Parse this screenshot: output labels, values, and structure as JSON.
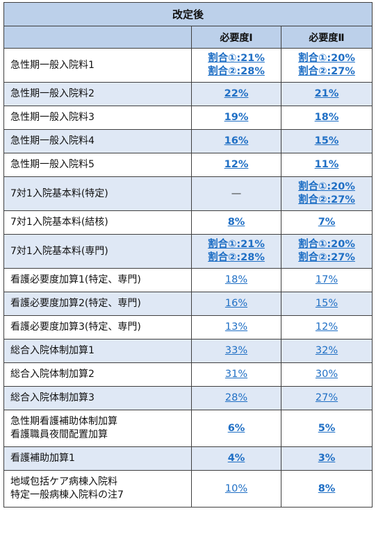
{
  "header": {
    "title": "改定後",
    "col1": "",
    "col2": "必要度Ⅰ",
    "col3": "必要度Ⅱ"
  },
  "rows": [
    {
      "name": [
        "急性期一般入院料1"
      ],
      "v1": [
        "割合①:21%",
        "割合②:28%"
      ],
      "v2": [
        "割合①:20%",
        "割合②:27%"
      ]
    },
    {
      "name": [
        "急性期一般入院料2"
      ],
      "v1": [
        "22%"
      ],
      "v2": [
        "21%"
      ]
    },
    {
      "name": [
        "急性期一般入院料3"
      ],
      "v1": [
        "19%"
      ],
      "v2": [
        "18%"
      ]
    },
    {
      "name": [
        "急性期一般入院料4"
      ],
      "v1": [
        "16%"
      ],
      "v2": [
        "15%"
      ]
    },
    {
      "name": [
        "急性期一般入院料5"
      ],
      "v1": [
        "12%"
      ],
      "v2": [
        "11%"
      ]
    },
    {
      "name": [
        "7対1入院基本料(特定)"
      ],
      "v1": [
        "—"
      ],
      "v2": [
        "割合①:20%",
        "割合②:27%"
      ]
    },
    {
      "name": [
        "7対1入院基本料(結核)"
      ],
      "v1": [
        "8%"
      ],
      "v2": [
        "7%"
      ]
    },
    {
      "name": [
        "7対1入院基本料(専門)"
      ],
      "v1": [
        "割合①:21%",
        "割合②:28%"
      ],
      "v2": [
        "割合①:20%",
        "割合②:27%"
      ]
    },
    {
      "name": [
        "看護必要度加算1(特定、専門)"
      ],
      "v1": [
        "18%"
      ],
      "v2": [
        "17%"
      ]
    },
    {
      "name": [
        "看護必要度加算2(特定、専門)"
      ],
      "v1": [
        "16%"
      ],
      "v2": [
        "15%"
      ]
    },
    {
      "name": [
        "看護必要度加算3(特定、専門)"
      ],
      "v1": [
        "13%"
      ],
      "v2": [
        "12%"
      ]
    },
    {
      "name": [
        "総合入院体制加算1"
      ],
      "v1": [
        "33%"
      ],
      "v2": [
        "32%"
      ]
    },
    {
      "name": [
        "総合入院体制加算2"
      ],
      "v1": [
        "31%"
      ],
      "v2": [
        "30%"
      ]
    },
    {
      "name": [
        "総合入院体制加算3"
      ],
      "v1": [
        "28%"
      ],
      "v2": [
        "27%"
      ]
    },
    {
      "name": [
        "急性期看護補助体制加算",
        "看護職員夜間配置加算"
      ],
      "v1": [
        "6%"
      ],
      "v2": [
        "5%"
      ]
    },
    {
      "name": [
        "看護補助加算1"
      ],
      "v1": [
        "4%"
      ],
      "v2": [
        "3%"
      ]
    },
    {
      "name": [
        "地域包括ケア病棟入院料",
        "特定一般病棟入院料の注7"
      ],
      "v1": [
        "10%"
      ],
      "v2": [
        "8%"
      ]
    }
  ]
}
